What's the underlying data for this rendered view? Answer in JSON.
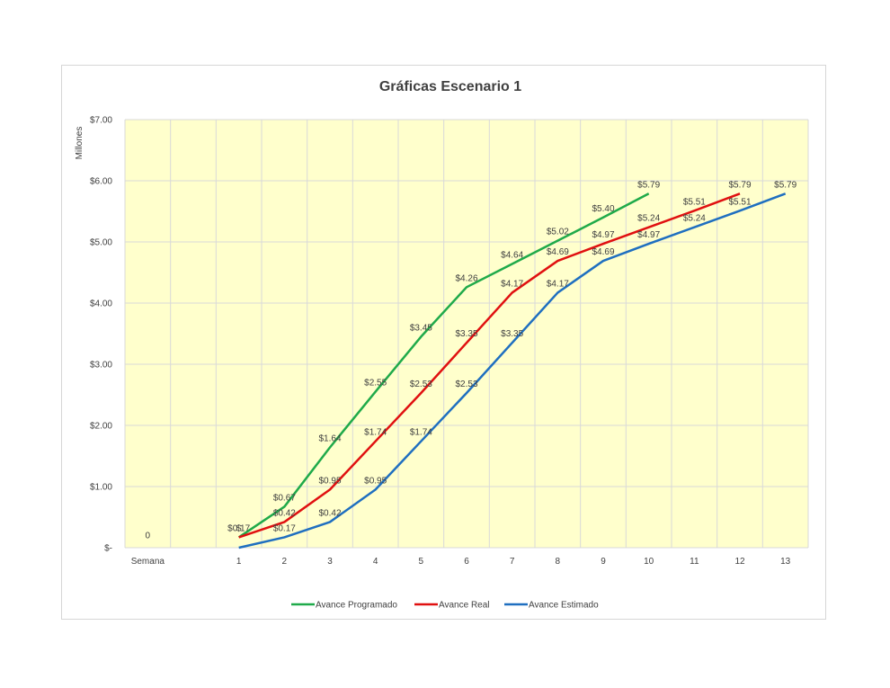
{
  "chart_data": {
    "type": "line",
    "title": "Gráficas Escenario 1",
    "ylabel": "Millones",
    "xlabel": "",
    "categories": [
      "Semana",
      "",
      "1",
      "2",
      "3",
      "4",
      "5",
      "6",
      "7",
      "8",
      "9",
      "10",
      "11",
      "12",
      "13"
    ],
    "ylim": [
      0,
      7
    ],
    "y_ticks": [
      "$-",
      "$1.00",
      "$2.00",
      "$3.00",
      "$4.00",
      "$5.00",
      "$6.00",
      "$7.00"
    ],
    "grid": true,
    "plot_background": "#ffffcc",
    "legend_position": "bottom",
    "extra_label": "0",
    "series": [
      {
        "name": "Avance Programado",
        "color": "#1faa4a",
        "values": [
          null,
          null,
          0.17,
          0.67,
          1.64,
          2.55,
          3.45,
          4.26,
          4.64,
          5.02,
          5.4,
          5.79,
          null,
          null,
          null
        ],
        "labels": [
          "",
          "",
          "$0.17",
          "$0.67",
          "$1.64",
          "$2.55",
          "$3.45",
          "$4.26",
          "$4.64",
          "$5.02",
          "$5.40",
          "$5.79",
          "",
          "",
          ""
        ]
      },
      {
        "name": "Avance Real",
        "color": "#e01010",
        "values": [
          null,
          null,
          0.17,
          0.42,
          0.95,
          1.74,
          2.53,
          3.35,
          4.17,
          4.69,
          4.97,
          5.24,
          5.51,
          5.79,
          null
        ],
        "labels": [
          "",
          "",
          "$",
          "$0.42",
          "$0.95",
          "$1.74",
          "$2.53",
          "$3.35",
          "$4.17",
          "$4.69",
          "$4.97",
          "$5.24",
          "$5.51",
          "$5.79",
          ""
        ]
      },
      {
        "name": "Avance Estimado",
        "color": "#1f6fc0",
        "values": [
          null,
          null,
          0.0,
          0.17,
          0.42,
          0.95,
          1.74,
          2.53,
          3.35,
          4.17,
          4.69,
          4.97,
          5.24,
          5.51,
          5.79
        ],
        "labels": [
          "",
          "",
          "",
          "$0.17",
          "$0.42",
          "$0.95",
          "$1.74",
          "$2.53",
          "$3.35",
          "$4.17",
          "$4.69",
          "$4.97",
          "$5.24",
          "$5.51",
          "$5.79"
        ]
      }
    ]
  }
}
